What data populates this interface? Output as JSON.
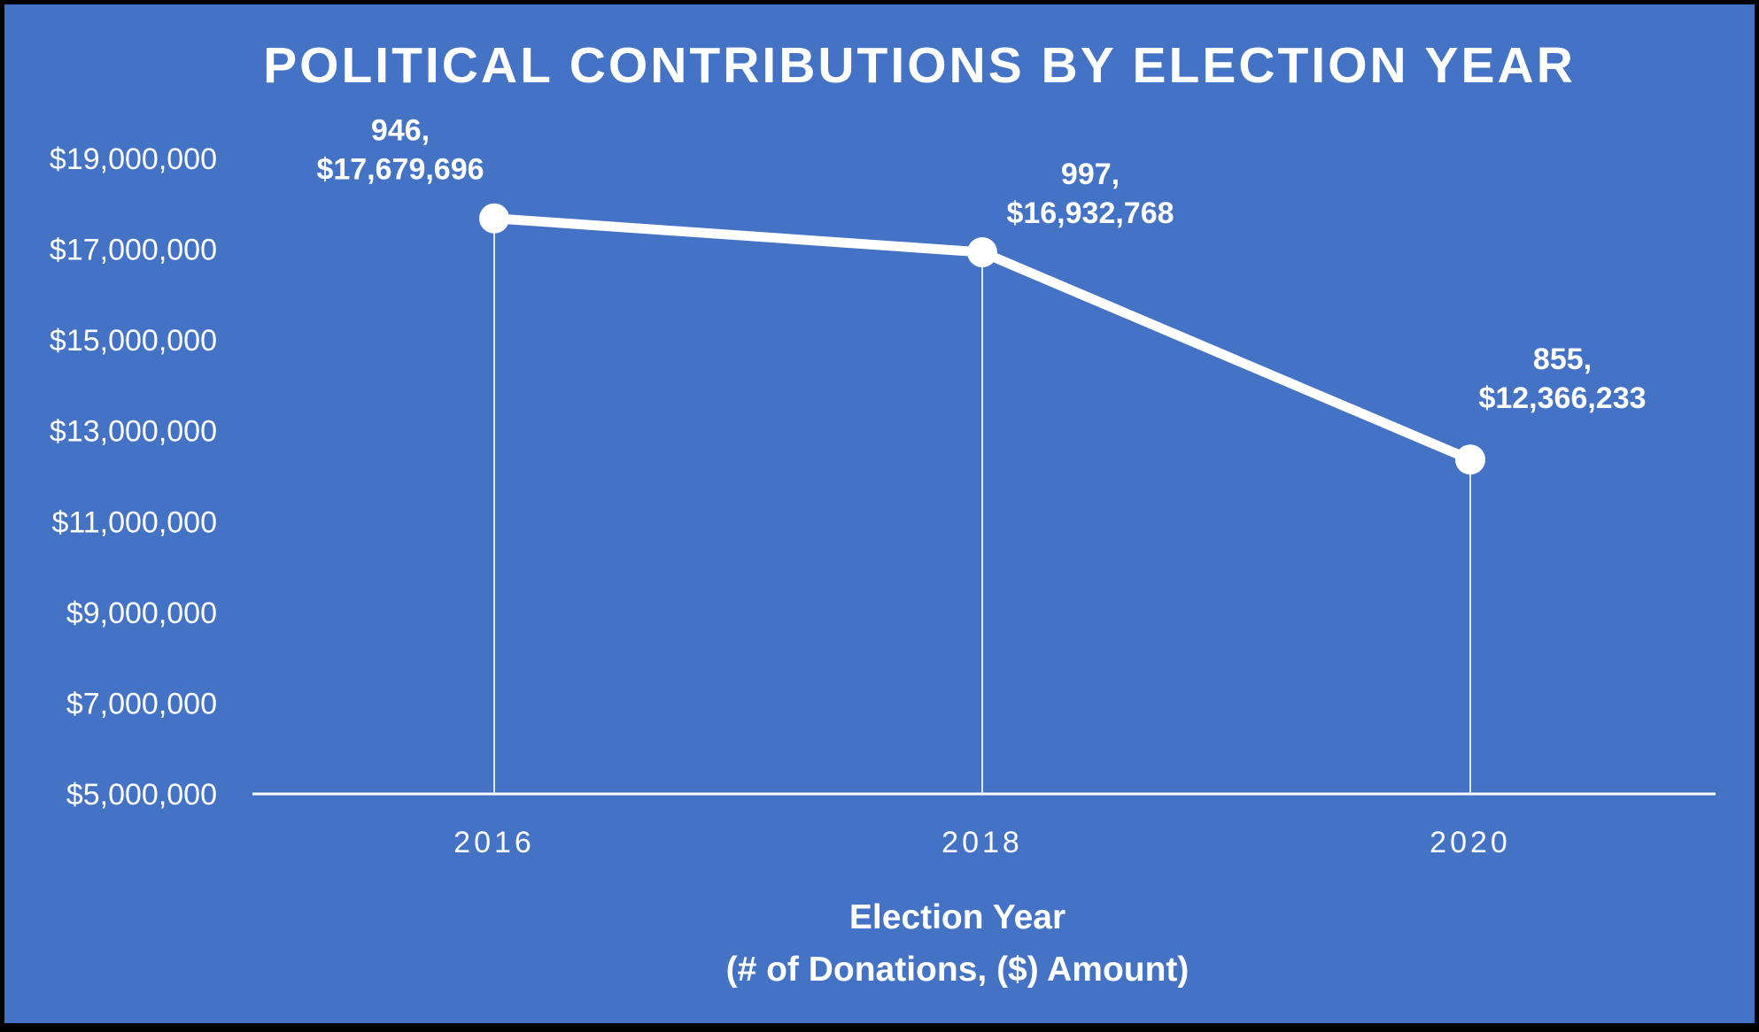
{
  "chart_data": {
    "type": "line",
    "title": "POLITICAL CONTRIBUTIONS BY ELECTION YEAR",
    "xlabel": [
      "Election Year",
      "(# of Donations, ($) Amount)"
    ],
    "ylabel": "",
    "categories": [
      "2016",
      "2018",
      "2020"
    ],
    "series": [
      {
        "values": [
          17679696,
          16932768,
          12366233
        ],
        "donations": [
          946,
          997,
          855
        ]
      }
    ],
    "data_labels": [
      [
        "946,",
        "$17,679,696"
      ],
      [
        "997,",
        "$16,932,768"
      ],
      [
        "855,",
        "$12,366,233"
      ]
    ],
    "ylim": [
      5000000,
      19000000
    ],
    "y_ticks": [
      5000000,
      7000000,
      9000000,
      11000000,
      13000000,
      15000000,
      17000000,
      19000000
    ],
    "y_tick_labels": [
      "$5,000,000",
      "$7,000,000",
      "$9,000,000",
      "$11,000,000",
      "$13,000,000",
      "$15,000,000",
      "$17,000,000",
      "$19,000,000"
    ],
    "grid": false,
    "drop_lines": true,
    "legend": "none",
    "colors": {
      "background": "#4472C4",
      "line": "#FFFFFF",
      "border": "#000000"
    }
  }
}
